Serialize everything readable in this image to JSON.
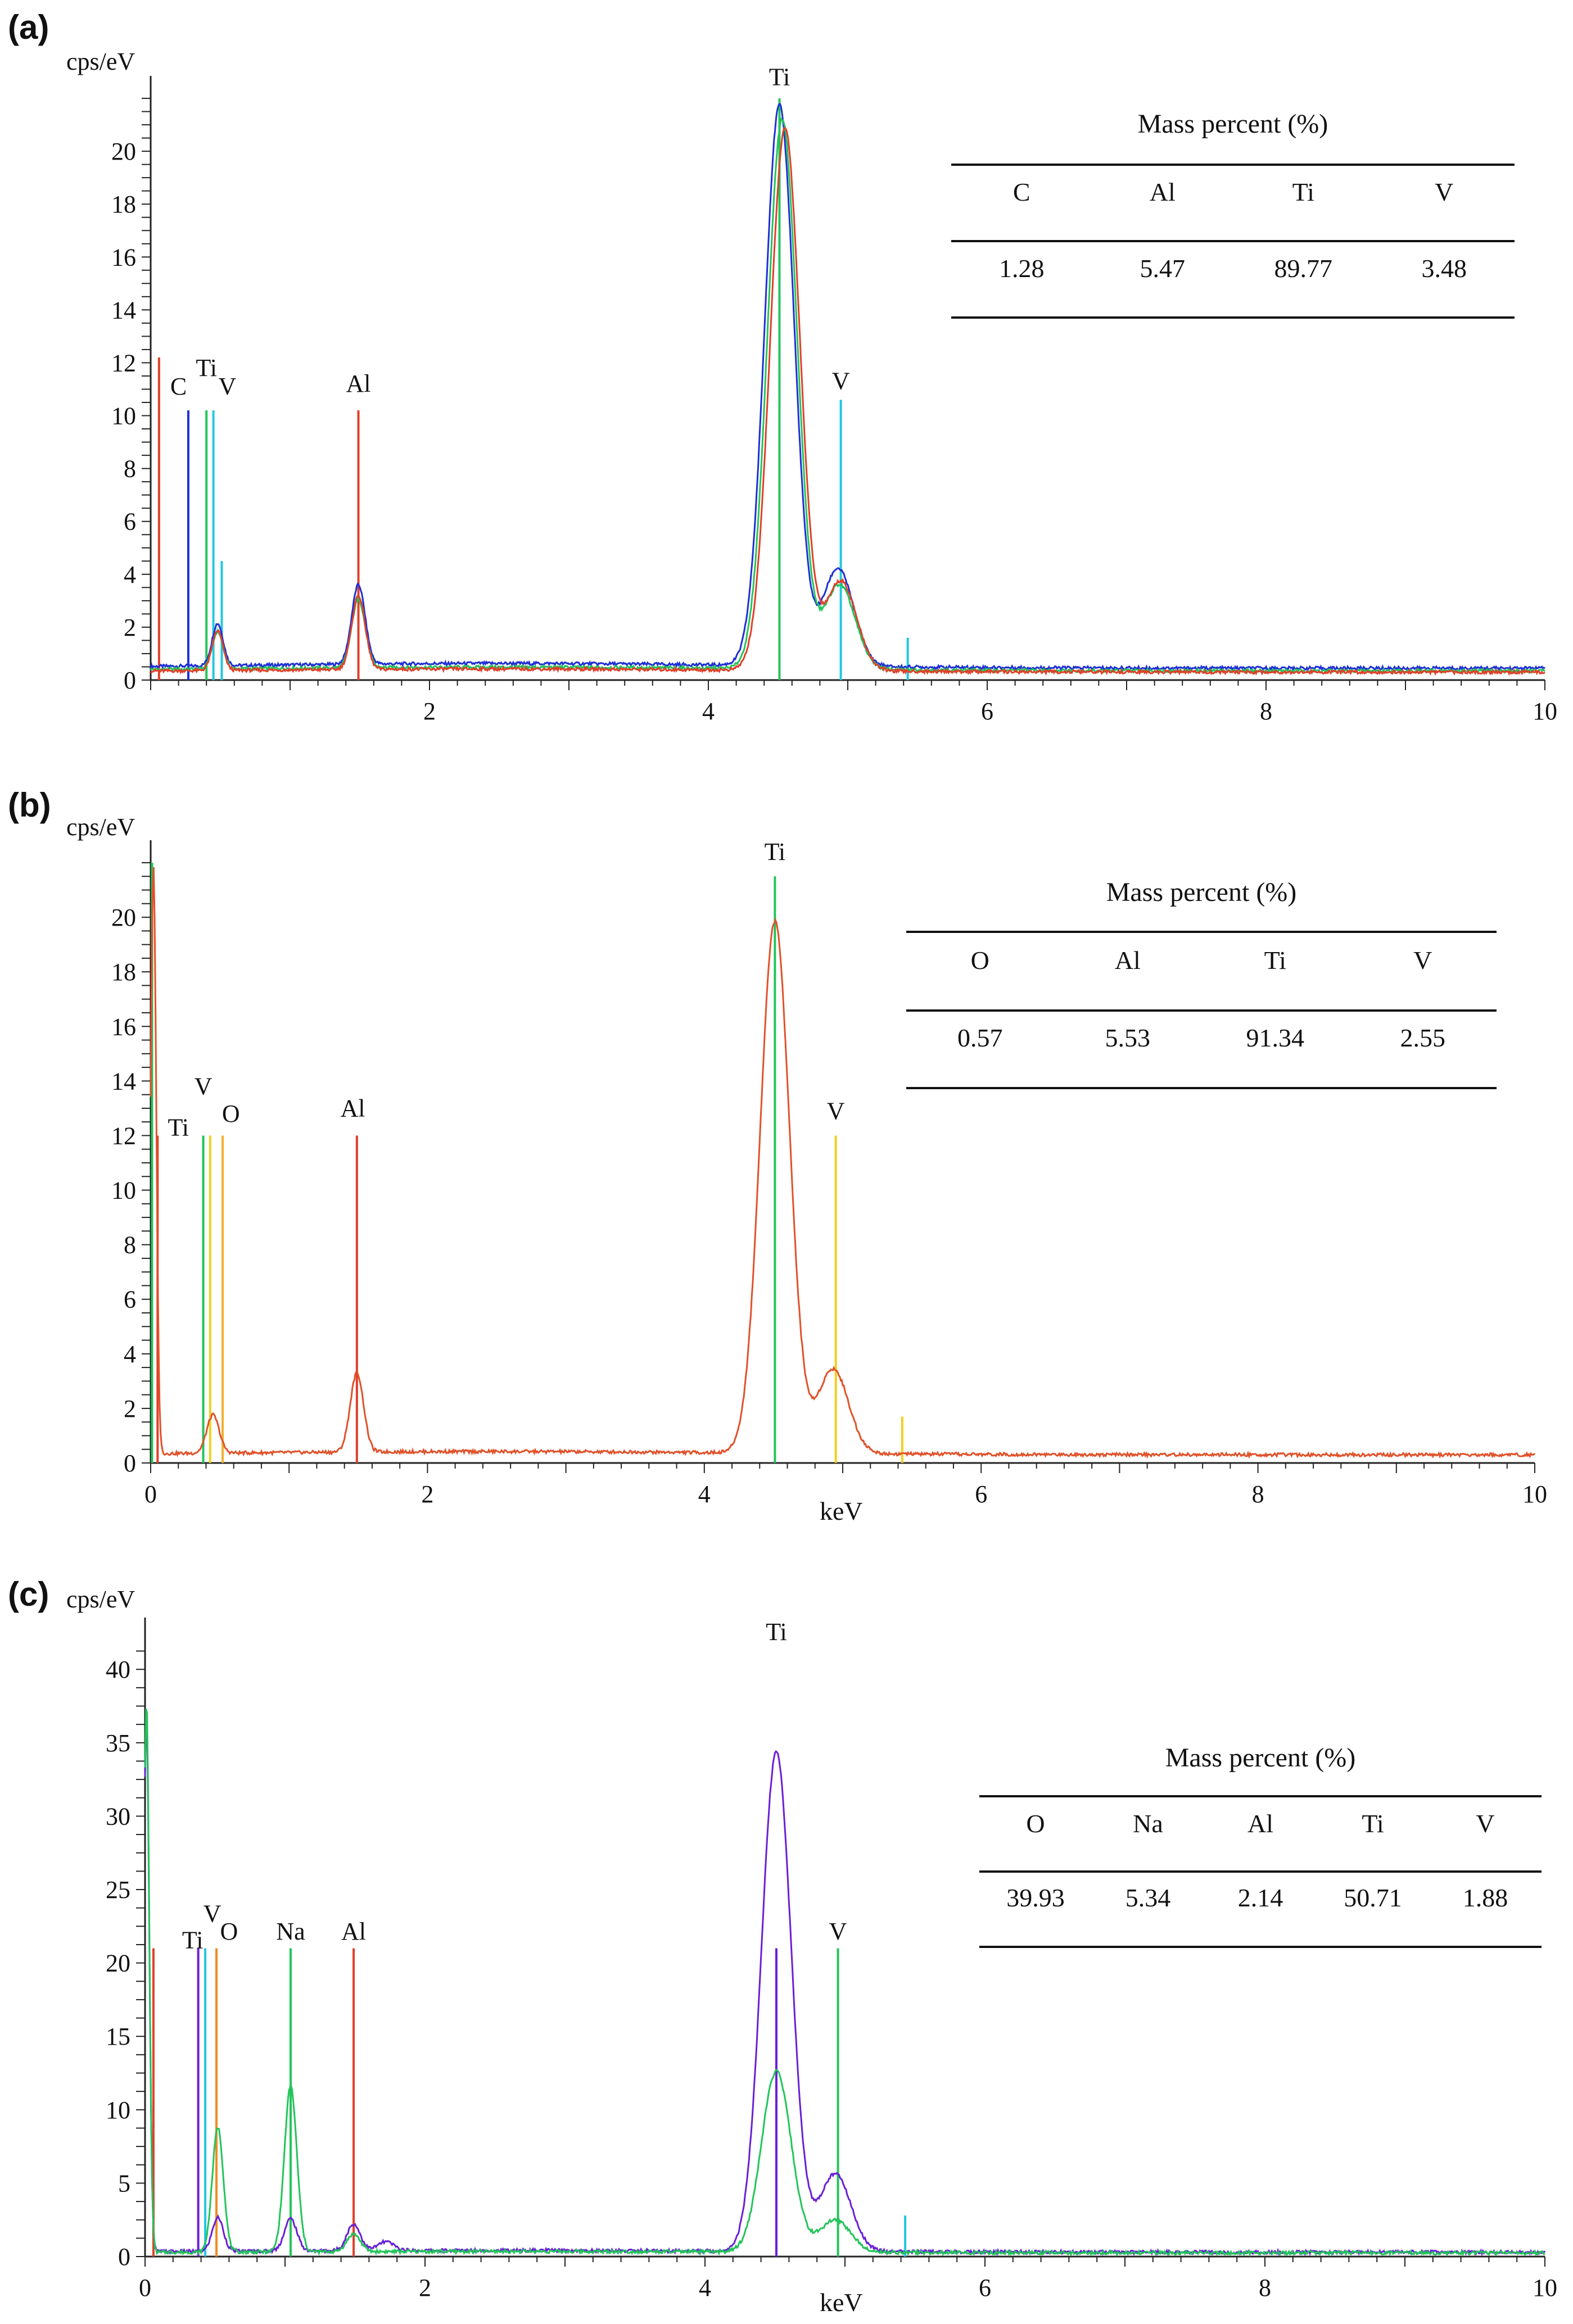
{
  "figure": {
    "units_y": "cps/eV",
    "units_x": "keV"
  },
  "chart_data": [
    {
      "type": "line",
      "panel": "(a)",
      "ylabel": "cps/eV",
      "xlabel": "",
      "xlim": [
        0,
        10
      ],
      "ylim": [
        0,
        22
      ],
      "xticks": [
        "2",
        "4",
        "6",
        "8",
        "10"
      ],
      "yticks": [
        "0",
        "2",
        "4",
        "6",
        "8",
        "10",
        "12",
        "14",
        "16",
        "18",
        "20"
      ],
      "spectra": [
        {
          "name": "spectrum-blue",
          "color": "#1f2fd6",
          "baseline": 0.45,
          "peaks": [
            [
              0.48,
              1.6,
              0.035
            ],
            [
              1.49,
              3.0,
              0.035
            ],
            [
              4.51,
              21.2,
              0.05
            ],
            [
              4.93,
              3.7,
              0.05
            ]
          ]
        },
        {
          "name": "spectrum-green",
          "color": "#22c45a",
          "baseline": 0.35,
          "peaks": [
            [
              0.48,
              1.4,
              0.035
            ],
            [
              1.49,
              2.6,
              0.035
            ],
            [
              4.53,
              20.8,
              0.05
            ],
            [
              4.94,
              3.2,
              0.05
            ]
          ]
        },
        {
          "name": "spectrum-red",
          "color": "#e0402a",
          "baseline": 0.3,
          "peaks": [
            [
              0.48,
              1.5,
              0.035
            ],
            [
              1.49,
              2.8,
              0.035
            ],
            [
              4.55,
              20.5,
              0.05
            ],
            [
              4.95,
              3.4,
              0.05
            ]
          ]
        }
      ],
      "markers": [
        {
          "x": 0.06,
          "h": 12.2,
          "color": "#e0402a"
        },
        {
          "x": 0.27,
          "h": 10.2,
          "color": "#1f2fd6"
        },
        {
          "x": 0.4,
          "h": 10.2,
          "color": "#22c45a"
        },
        {
          "x": 0.45,
          "h": 10.2,
          "color": "#22c7e0"
        },
        {
          "x": 0.51,
          "h": 4.5,
          "color": "#22c7e0"
        },
        {
          "x": 1.49,
          "h": 10.2,
          "color": "#e0402a"
        },
        {
          "x": 4.51,
          "h": 22.0,
          "color": "#22c45a"
        },
        {
          "x": 4.95,
          "h": 10.6,
          "color": "#22c7e0"
        },
        {
          "x": 5.43,
          "h": 1.6,
          "color": "#22c7e0"
        }
      ],
      "peak_labels": [
        {
          "text": "C",
          "x": 0.2,
          "y": 10.8
        },
        {
          "text": "Ti",
          "x": 0.4,
          "y": 11.5
        },
        {
          "text": "V",
          "x": 0.55,
          "y": 10.8
        },
        {
          "text": "Al",
          "x": 1.49,
          "y": 10.9
        },
        {
          "text": "Ti",
          "x": 4.51,
          "y": 22.5
        },
        {
          "text": "V",
          "x": 4.95,
          "y": 11.0
        }
      ],
      "table": {
        "title": "Mass percent (%)",
        "headers": [
          "C",
          "Al",
          "Ti",
          "V"
        ],
        "values": [
          "1.28",
          "5.47",
          "89.77",
          "3.48"
        ]
      }
    },
    {
      "type": "line",
      "panel": "(b)",
      "ylabel": "cps/eV",
      "xlabel": "keV",
      "xlim": [
        0,
        10
      ],
      "ylim": [
        0,
        22
      ],
      "xticks": [
        "0",
        "2",
        "4",
        "6",
        "8",
        "10"
      ],
      "yticks": [
        "0",
        "2",
        "4",
        "6",
        "8",
        "10",
        "12",
        "14",
        "16",
        "18",
        "20"
      ],
      "spectra": [
        {
          "name": "spectrum-orange",
          "color": "#e0522a",
          "baseline": 0.3,
          "peaks": [
            [
              0.02,
              21.5,
              0.02
            ],
            [
              0.45,
              1.4,
              0.04
            ],
            [
              1.49,
              2.9,
              0.035
            ],
            [
              4.51,
              19.5,
              0.05
            ],
            [
              4.93,
              3.1,
              0.05
            ]
          ]
        }
      ],
      "markers": [
        {
          "x": 0.01,
          "h": 22.0,
          "color": "#22c45a"
        },
        {
          "x": 0.05,
          "h": 12.0,
          "color": "#e0402a"
        },
        {
          "x": 0.38,
          "h": 12.0,
          "color": "#22c45a"
        },
        {
          "x": 0.43,
          "h": 12.0,
          "color": "#f0d020"
        },
        {
          "x": 0.52,
          "h": 12.0,
          "color": "#f0b030"
        },
        {
          "x": 1.49,
          "h": 12.0,
          "color": "#e0402a"
        },
        {
          "x": 4.51,
          "h": 21.5,
          "color": "#22c45a"
        },
        {
          "x": 4.95,
          "h": 12.0,
          "color": "#f0d020"
        },
        {
          "x": 5.43,
          "h": 1.7,
          "color": "#f0d020"
        }
      ],
      "peak_labels": [
        {
          "text": "Ti",
          "x": 0.2,
          "y": 12.0
        },
        {
          "text": "V",
          "x": 0.38,
          "y": 13.5
        },
        {
          "text": "O",
          "x": 0.58,
          "y": 12.5
        },
        {
          "text": "Al",
          "x": 1.46,
          "y": 12.7
        },
        {
          "text": "Ti",
          "x": 4.51,
          "y": 22.1
        },
        {
          "text": "V",
          "x": 4.95,
          "y": 12.6
        }
      ],
      "table": {
        "title": "Mass percent (%)",
        "headers": [
          "O",
          "Al",
          "Ti",
          "V"
        ],
        "values": [
          "0.57",
          "5.53",
          "91.34",
          "2.55"
        ]
      }
    },
    {
      "type": "line",
      "panel": "(c)",
      "ylabel": "cps/eV",
      "xlabel": "keV",
      "xlim": [
        0,
        10
      ],
      "ylim": [
        0,
        42
      ],
      "xticks": [
        "0",
        "2",
        "4",
        "6",
        "8",
        "10"
      ],
      "yticks": [
        "0",
        "5",
        "10",
        "15",
        "20",
        "25",
        "30",
        "35",
        "40"
      ],
      "spectra": [
        {
          "name": "spectrum-purple",
          "color": "#6a1fd6",
          "baseline": 0.3,
          "peaks": [
            [
              0.01,
              36.5,
              0.02
            ],
            [
              0.52,
              2.3,
              0.035
            ],
            [
              1.04,
              2.2,
              0.035
            ],
            [
              1.49,
              1.8,
              0.035
            ],
            [
              1.72,
              0.6,
              0.04
            ],
            [
              4.51,
              34.0,
              0.05
            ],
            [
              4.93,
              5.3,
              0.05
            ]
          ]
        },
        {
          "name": "spectrum-green",
          "color": "#22c45a",
          "baseline": 0.25,
          "peaks": [
            [
              0.01,
              37.5,
              0.02
            ],
            [
              0.52,
              8.5,
              0.035
            ],
            [
              1.04,
              11.3,
              0.035
            ],
            [
              1.49,
              1.2,
              0.035
            ],
            [
              4.51,
              12.3,
              0.05
            ],
            [
              4.93,
              2.2,
              0.05
            ]
          ]
        }
      ],
      "markers": [
        {
          "x": 0.06,
          "h": 21.0,
          "color": "#e0402a"
        },
        {
          "x": 0.38,
          "h": 21.0,
          "color": "#6a1fd6"
        },
        {
          "x": 0.43,
          "h": 21.0,
          "color": "#22c7e0"
        },
        {
          "x": 0.51,
          "h": 21.0,
          "color": "#f08a20"
        },
        {
          "x": 1.04,
          "h": 21.0,
          "color": "#22c45a"
        },
        {
          "x": 1.49,
          "h": 21.0,
          "color": "#e0402a"
        },
        {
          "x": 4.51,
          "h": 21.0,
          "color": "#6a1fd6"
        },
        {
          "x": 4.95,
          "h": 21.0,
          "color": "#22c45a"
        },
        {
          "x": 5.43,
          "h": 2.8,
          "color": "#22c7e0"
        }
      ],
      "peak_labels": [
        {
          "text": "Ti",
          "x": 0.34,
          "y": 21.0
        },
        {
          "text": "V",
          "x": 0.48,
          "y": 22.8
        },
        {
          "text": "O",
          "x": 0.6,
          "y": 21.6
        },
        {
          "text": "Na",
          "x": 1.04,
          "y": 21.6
        },
        {
          "text": "Al",
          "x": 1.49,
          "y": 21.6
        },
        {
          "text": "Ti",
          "x": 4.51,
          "y": 42.0
        },
        {
          "text": "V",
          "x": 4.95,
          "y": 21.6
        }
      ],
      "table": {
        "title": "Mass percent (%)",
        "headers": [
          "O",
          "Na",
          "Al",
          "Ti",
          "V"
        ],
        "values": [
          "39.93",
          "5.34",
          "2.14",
          "50.71",
          "1.88"
        ]
      }
    }
  ]
}
